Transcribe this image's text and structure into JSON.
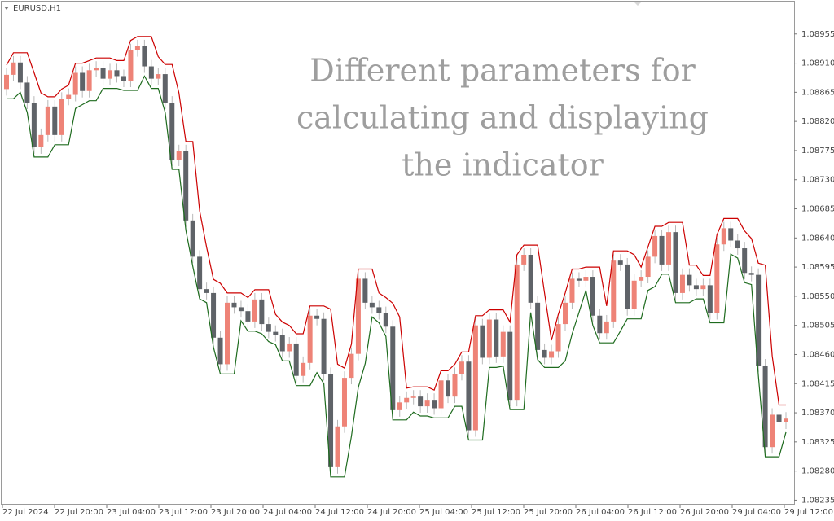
{
  "chart_data": {
    "type": "candlestick",
    "title": "EURUSD,H1",
    "annotation": [
      "Different parameters for",
      "calculating and displaying",
      "the indicator"
    ],
    "up_color": "#ee8377",
    "down_color": "#5f6368",
    "wick_color": "#b8b8b8",
    "xtick_labels": [
      "22 Jul 2024",
      "22 Jul 20:00",
      "23 Jul 04:00",
      "23 Jul 12:00",
      "23 Jul 20:00",
      "24 Jul 04:00",
      "24 Jul 12:00",
      "24 Jul 20:00",
      "25 Jul 04:00",
      "25 Jul 12:00",
      "25 Jul 20:00",
      "26 Jul 04:00",
      "26 Jul 12:00",
      "26 Jul 20:00",
      "29 Jul 04:00",
      "29 Jul 12:00"
    ],
    "ylim": [
      1.08228,
      1.09005
    ],
    "yticks": [
      1.08955,
      {
        "value": 1.0891,
        "label": "1.08910"
      },
      1.08865,
      {
        "value": 1.0882,
        "label": "1.08820"
      },
      1.08775,
      {
        "value": 1.0873,
        "label": "1.08730"
      },
      1.08685,
      {
        "value": 1.0864,
        "label": "1.08640"
      },
      1.08595,
      {
        "value": 1.0855,
        "label": "1.08550"
      },
      1.08505,
      {
        "value": 1.0846,
        "label": "1.08460"
      },
      1.08415,
      {
        "value": 1.0837,
        "label": "1.08370"
      },
      1.08325,
      {
        "value": 1.0828,
        "label": "1.08280"
      },
      1.08235
    ],
    "open": [
      1.0887,
      1.08892,
      1.08911,
      1.0888,
      1.08849,
      1.0878,
      1.08799,
      1.08843,
      1.08799,
      1.08855,
      1.08861,
      1.08895,
      1.08867,
      1.08899,
      1.08903,
      1.08886,
      1.08899,
      1.0889,
      1.08883,
      1.0893,
      1.08936,
      1.08905,
      1.08886,
      1.08893,
      1.08849,
      1.08761,
      1.08774,
      1.08667,
      1.08611,
      1.08561,
      1.08555,
      1.08486,
      1.08445,
      1.0854,
      1.08533,
      1.08527,
      1.08511,
      1.08545,
      1.08507,
      1.08495,
      1.0849,
      1.08465,
      1.08477,
      1.08427,
      1.08447,
      1.0852,
      1.08515,
      1.0843,
      1.08286,
      1.08349,
      1.08424,
      1.08461,
      1.08577,
      1.0854,
      1.08533,
      1.08524,
      1.08503,
      1.08374,
      1.08386,
      1.08393,
      1.08395,
      1.0838,
      1.0839,
      1.08377,
      1.0842,
      1.08395,
      1.0843,
      1.08449,
      1.08343,
      1.08505,
      1.08455,
      1.08514,
      1.08457,
      1.08495,
      1.0839,
      1.08599,
      1.08614,
      1.0854,
      1.08467,
      1.08455,
      1.08465,
      1.08507,
      1.0854,
      1.08577,
      1.08574,
      1.0858,
      1.0852,
      1.08493,
      1.08511,
      1.08605,
      1.08599,
      1.0853,
      1.08574,
      1.0858,
      1.08611,
      1.08643,
      1.08599,
      1.08649,
      1.08555,
      1.08583,
      1.08567,
      1.08561,
      1.08567,
      1.08524,
      1.0863,
      1.08655,
      1.08636,
      1.08624,
      1.08586,
      1.08583,
      1.08443,
      1.08317,
      1.08367,
      1.08355
    ],
    "high": [
      1.08902,
      1.08921,
      1.08921,
      1.0889,
      1.08859,
      1.08809,
      1.08853,
      1.08853,
      1.08865,
      1.08871,
      1.08905,
      1.08905,
      1.08909,
      1.08913,
      1.08913,
      1.08909,
      1.08909,
      1.089,
      1.0894,
      1.08946,
      1.08946,
      1.08915,
      1.08903,
      1.08903,
      1.08859,
      1.08784,
      1.08784,
      1.08677,
      1.08621,
      1.08571,
      1.08565,
      1.08496,
      1.0855,
      1.0855,
      1.08543,
      1.08537,
      1.08555,
      1.08555,
      1.08517,
      1.08505,
      1.085,
      1.08487,
      1.08487,
      1.08457,
      1.0853,
      1.0853,
      1.08525,
      1.0844,
      1.08359,
      1.08434,
      1.08471,
      1.08587,
      1.08587,
      1.0855,
      1.08543,
      1.08534,
      1.08513,
      1.08396,
      1.08403,
      1.08405,
      1.08405,
      1.084,
      1.084,
      1.0843,
      1.0843,
      1.0844,
      1.08459,
      1.08459,
      1.08515,
      1.08515,
      1.08524,
      1.08524,
      1.08505,
      1.08505,
      1.08609,
      1.08624,
      1.08624,
      1.0855,
      1.08477,
      1.08475,
      1.08517,
      1.0855,
      1.08587,
      1.08587,
      1.0859,
      1.0859,
      1.0853,
      1.08521,
      1.08615,
      1.08615,
      1.08609,
      1.08584,
      1.0859,
      1.08621,
      1.08653,
      1.08653,
      1.08659,
      1.08659,
      1.08593,
      1.08593,
      1.08577,
      1.08577,
      1.08577,
      1.0864,
      1.08665,
      1.08665,
      1.08646,
      1.08634,
      1.08596,
      1.08593,
      1.08453,
      1.08377,
      1.08377,
      1.08371
    ],
    "low": [
      1.0886,
      1.08882,
      1.0887,
      1.08839,
      1.0877,
      1.0877,
      1.08789,
      1.08789,
      1.08789,
      1.08845,
      1.08851,
      1.08857,
      1.08857,
      1.08889,
      1.08876,
      1.08876,
      1.0888,
      1.08873,
      1.08873,
      1.0892,
      1.08895,
      1.08876,
      1.08876,
      1.08839,
      1.08751,
      1.08751,
      1.08657,
      1.08601,
      1.08551,
      1.08545,
      1.08476,
      1.08435,
      1.08435,
      1.08523,
      1.08517,
      1.08501,
      1.08501,
      1.08497,
      1.08485,
      1.0848,
      1.08455,
      1.08455,
      1.08417,
      1.08417,
      1.08437,
      1.08505,
      1.0842,
      1.08276,
      1.08276,
      1.08339,
      1.08414,
      1.08451,
      1.0853,
      1.08523,
      1.08514,
      1.08493,
      1.08364,
      1.08364,
      1.08376,
      1.08383,
      1.0837,
      1.0837,
      1.08367,
      1.08367,
      1.08385,
      1.08385,
      1.0842,
      1.08333,
      1.08333,
      1.08445,
      1.08445,
      1.08447,
      1.08447,
      1.0838,
      1.0838,
      1.08589,
      1.0853,
      1.08457,
      1.08445,
      1.08445,
      1.08455,
      1.08497,
      1.0853,
      1.08564,
      1.08564,
      1.0851,
      1.08483,
      1.08483,
      1.08501,
      1.08589,
      1.0852,
      1.0852,
      1.08564,
      1.0857,
      1.08601,
      1.08589,
      1.08589,
      1.08545,
      1.08545,
      1.08557,
      1.08551,
      1.08551,
      1.08514,
      1.08514,
      1.0862,
      1.08626,
      1.08614,
      1.08576,
      1.08573,
      1.08433,
      1.08307,
      1.08307,
      1.08345,
      1.08345
    ],
    "close": [
      1.08892,
      1.08911,
      1.0888,
      1.08849,
      1.0878,
      1.08799,
      1.08843,
      1.08799,
      1.08855,
      1.08861,
      1.08895,
      1.08867,
      1.08899,
      1.08903,
      1.08886,
      1.08899,
      1.0889,
      1.08883,
      1.0893,
      1.08936,
      1.08905,
      1.08886,
      1.08893,
      1.08849,
      1.08761,
      1.08774,
      1.08667,
      1.08611,
      1.08561,
      1.08555,
      1.08486,
      1.08445,
      1.0854,
      1.08533,
      1.08527,
      1.08511,
      1.08545,
      1.08507,
      1.08495,
      1.0849,
      1.08465,
      1.08477,
      1.08427,
      1.08447,
      1.0852,
      1.08515,
      1.0843,
      1.08286,
      1.08349,
      1.08424,
      1.08461,
      1.08577,
      1.0854,
      1.08533,
      1.08524,
      1.08503,
      1.08374,
      1.08386,
      1.08393,
      1.08395,
      1.0838,
      1.0839,
      1.08377,
      1.0842,
      1.08395,
      1.0843,
      1.08449,
      1.08343,
      1.08505,
      1.08455,
      1.08514,
      1.08457,
      1.08495,
      1.0839,
      1.08599,
      1.08614,
      1.0854,
      1.08467,
      1.08455,
      1.08465,
      1.08507,
      1.0854,
      1.08577,
      1.08574,
      1.0858,
      1.0852,
      1.08493,
      1.08511,
      1.08605,
      1.08599,
      1.0853,
      1.08574,
      1.0858,
      1.08611,
      1.08643,
      1.08599,
      1.08649,
      1.08555,
      1.08583,
      1.08567,
      1.08561,
      1.08567,
      1.08524,
      1.0863,
      1.08655,
      1.08636,
      1.08624,
      1.08586,
      1.08583,
      1.08443,
      1.08317,
      1.08367,
      1.08355,
      1.08361
    ],
    "upper_line": {
      "color": "#cc0000",
      "values": [
        1.08907,
        1.08926,
        1.08926,
        1.08926,
        1.08895,
        1.08864,
        1.08858,
        1.08858,
        1.0887,
        1.08876,
        1.0891,
        1.0891,
        1.08914,
        1.08918,
        1.08918,
        1.08918,
        1.08914,
        1.08914,
        1.08945,
        1.08951,
        1.08951,
        1.08951,
        1.0892,
        1.08908,
        1.08908,
        1.08864,
        1.08789,
        1.08789,
        1.08682,
        1.08626,
        1.08576,
        1.0857,
        1.08555,
        1.08555,
        1.08555,
        1.08548,
        1.0856,
        1.0856,
        1.0856,
        1.08522,
        1.0851,
        1.08505,
        1.08492,
        1.08492,
        1.08535,
        1.08535,
        1.08535,
        1.0853,
        1.08445,
        1.08439,
        1.08476,
        1.08592,
        1.08592,
        1.08592,
        1.08555,
        1.08548,
        1.08539,
        1.08518,
        1.08408,
        1.0841,
        1.0841,
        1.0841,
        1.08405,
        1.08435,
        1.08435,
        1.08445,
        1.08464,
        1.08464,
        1.0852,
        1.0852,
        1.08529,
        1.08529,
        1.08529,
        1.0851,
        1.08614,
        1.08629,
        1.08629,
        1.08629,
        1.08555,
        1.08482,
        1.08522,
        1.08555,
        1.08592,
        1.08592,
        1.08595,
        1.08595,
        1.08595,
        1.08535,
        1.0862,
        1.0862,
        1.0862,
        1.08614,
        1.08595,
        1.08626,
        1.08658,
        1.08658,
        1.08664,
        1.08664,
        1.08664,
        1.08598,
        1.08598,
        1.08582,
        1.08582,
        1.08645,
        1.0867,
        1.0867,
        1.0867,
        1.08651,
        1.08639,
        1.08601,
        1.08598,
        1.08458,
        1.08382,
        1.08382
      ]
    },
    "lower_line": {
      "color": "#1e6b1e",
      "values": [
        1.08855,
        1.08855,
        1.08865,
        1.08834,
        1.08765,
        1.08765,
        1.08765,
        1.08784,
        1.08784,
        1.08784,
        1.0884,
        1.08846,
        1.08852,
        1.08852,
        1.08871,
        1.08871,
        1.08871,
        1.08868,
        1.08868,
        1.08868,
        1.0889,
        1.08871,
        1.08871,
        1.08834,
        1.08746,
        1.08746,
        1.08652,
        1.08596,
        1.08546,
        1.0854,
        1.08471,
        1.0843,
        1.0843,
        1.0843,
        1.08512,
        1.08496,
        1.08496,
        1.08492,
        1.0848,
        1.08475,
        1.0845,
        1.0845,
        1.08412,
        1.08412,
        1.08412,
        1.08432,
        1.08415,
        1.08271,
        1.08271,
        1.08271,
        1.08334,
        1.08409,
        1.08446,
        1.08518,
        1.08509,
        1.08488,
        1.08359,
        1.08359,
        1.08359,
        1.08371,
        1.08365,
        1.08365,
        1.08362,
        1.08362,
        1.08362,
        1.0838,
        1.0838,
        1.08328,
        1.08328,
        1.08328,
        1.0844,
        1.0844,
        1.08442,
        1.08375,
        1.08375,
        1.08375,
        1.08525,
        1.08452,
        1.0844,
        1.0844,
        1.0844,
        1.0845,
        1.08492,
        1.08525,
        1.08559,
        1.08505,
        1.08478,
        1.08478,
        1.08478,
        1.08496,
        1.08515,
        1.08515,
        1.08515,
        1.08559,
        1.08565,
        1.08584,
        1.08584,
        1.0854,
        1.0854,
        1.0854,
        1.08546,
        1.08546,
        1.08509,
        1.08509,
        1.08509,
        1.08615,
        1.08609,
        1.08571,
        1.08568,
        1.08428,
        1.08302,
        1.08302,
        1.08302,
        1.0834
      ]
    }
  }
}
